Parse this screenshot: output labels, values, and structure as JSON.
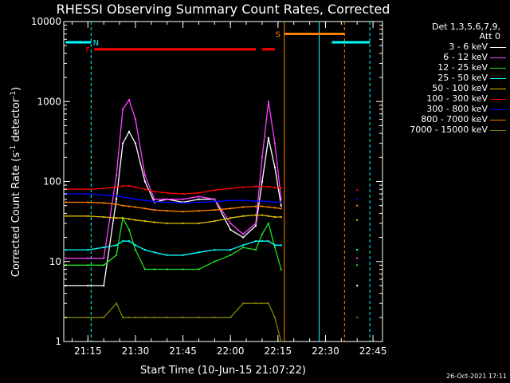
{
  "title": "RHESSI Observing Summary Count Rates, Corrected",
  "legend": {
    "header_line1": "Det 1,3,5,6,7,9,",
    "header_line2": "Att 0"
  },
  "footer_stamp": "26-Oct-2021 17:11",
  "chart_data": {
    "type": "line",
    "title": "RHESSI Observing Summary Count Rates, Corrected",
    "xlabel": "Start Time (10-Jun-15 21:07:22)",
    "ylabel": "Corrected Count Rate (s⁻¹ detector⁻¹)",
    "ylabel_main": "Corrected Count Rate (s",
    "ylabel_exp1": "-1",
    "ylabel_mid": " detector",
    "ylabel_exp2": "-1",
    "ylabel_end": ")",
    "yscale": "log",
    "ylim": [
      1,
      10000
    ],
    "xlim": [
      "21:07:22",
      "22:48:00"
    ],
    "xtick_labels": [
      "21:15",
      "21:30",
      "21:45",
      "22:00",
      "22:15",
      "22:30",
      "22:45"
    ],
    "ytick_labels": [
      "1",
      "10",
      "100",
      "1000",
      "10000"
    ],
    "legend_position": "right",
    "x": [
      "21:08",
      "21:15",
      "21:20",
      "21:24",
      "21:26",
      "21:28",
      "21:30",
      "21:33",
      "21:36",
      "21:40",
      "21:45",
      "21:50",
      "21:55",
      "22:00",
      "22:04",
      "22:08",
      "22:10",
      "22:12",
      "22:14",
      "22:16",
      "22:36",
      "22:40"
    ],
    "series": [
      {
        "name": "3 - 6 keV",
        "color": "#ffffff",
        "values": [
          5,
          5,
          5,
          60,
          300,
          420,
          300,
          100,
          55,
          60,
          55,
          60,
          60,
          25,
          20,
          28,
          100,
          350,
          150,
          50,
          null,
          5
        ]
      },
      {
        "name": "6 - 12 keV",
        "color": "#ff40ff",
        "values": [
          11,
          11,
          11,
          120,
          800,
          1050,
          600,
          120,
          60,
          60,
          60,
          65,
          60,
          30,
          22,
          30,
          200,
          1000,
          300,
          60,
          null,
          11
        ]
      },
      {
        "name": "12 - 25 keV",
        "color": "#20e020",
        "values": [
          9,
          9,
          9,
          12,
          35,
          25,
          14,
          8,
          8,
          8,
          8,
          8,
          10,
          12,
          15,
          14,
          22,
          30,
          15,
          8,
          null,
          9
        ]
      },
      {
        "name": "25 - 50 keV",
        "color": "#00ffff",
        "values": [
          14,
          14,
          15,
          16,
          18,
          18,
          16,
          14,
          13,
          12,
          12,
          13,
          14,
          14,
          16,
          18,
          18,
          18,
          16,
          16,
          null,
          14
        ]
      },
      {
        "name": "50 - 100 keV",
        "color": "#e0c000",
        "values": [
          37,
          37,
          36,
          35,
          35,
          34,
          33,
          32,
          31,
          30,
          30,
          30,
          32,
          35,
          37,
          38,
          38,
          37,
          36,
          36,
          null,
          33
        ]
      },
      {
        "name": "100 - 300 keV",
        "color": "#ff0000",
        "values": [
          80,
          80,
          82,
          85,
          88,
          88,
          85,
          80,
          75,
          72,
          70,
          72,
          78,
          82,
          85,
          87,
          87,
          86,
          84,
          83,
          null,
          78
        ]
      },
      {
        "name": "300 - 800 keV",
        "color": "#0000ff",
        "values": [
          70,
          70,
          68,
          66,
          64,
          62,
          60,
          58,
          56,
          55,
          54,
          55,
          56,
          58,
          58,
          57,
          57,
          56,
          55,
          55,
          null,
          60
        ]
      },
      {
        "name": "800 - 7000 keV",
        "color": "#ff8000",
        "values": [
          55,
          55,
          54,
          52,
          50,
          49,
          48,
          46,
          44,
          43,
          42,
          43,
          44,
          46,
          48,
          49,
          49,
          48,
          47,
          46,
          null,
          50
        ]
      },
      {
        "name": "7000 - 15000 keV",
        "color": "#808000",
        "values": [
          2,
          2,
          2,
          3,
          2,
          2,
          2,
          2,
          2,
          2,
          2,
          2,
          2,
          2,
          3,
          3,
          3,
          3,
          2,
          1,
          null,
          2
        ]
      }
    ],
    "annotations": [
      {
        "label": "N",
        "color": "#00ffff",
        "y": 5500,
        "segments": [
          [
            "21:08",
            "21:16"
          ],
          [
            "22:32",
            "22:44"
          ]
        ]
      },
      {
        "label": "F",
        "color": "#ff0000",
        "y": 4500,
        "segments": [
          [
            "21:17",
            "22:08"
          ],
          [
            "22:10",
            "22:14"
          ]
        ]
      },
      {
        "label": "S",
        "color": "#ff8000",
        "y": 7000,
        "segments": [
          [
            "22:17",
            "22:36"
          ]
        ]
      }
    ],
    "vertical_lines": [
      {
        "x": "21:16",
        "color": "#00ffff",
        "style": "dashed"
      },
      {
        "x": "22:17",
        "color": "#ff8000",
        "style": "solid"
      },
      {
        "x": "22:28",
        "color": "#00ffff",
        "style": "solid"
      },
      {
        "x": "22:36",
        "color": "#ff8000",
        "style": "dashed"
      },
      {
        "x": "22:44",
        "color": "#00ffff",
        "style": "dashed"
      }
    ]
  }
}
